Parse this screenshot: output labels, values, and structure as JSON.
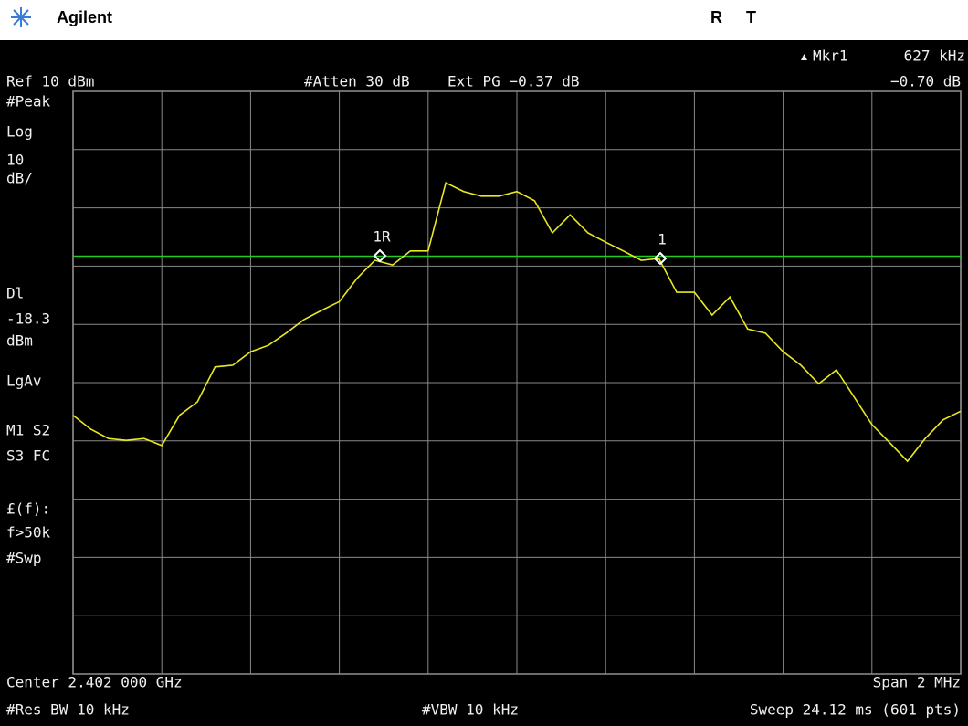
{
  "header": {
    "brand": "Agilent",
    "status": [
      "R",
      "T"
    ]
  },
  "readouts": {
    "marker": "Mkr1",
    "marker_delta": "627 kHz",
    "ref": "Ref 10 dBm",
    "atten": "#Atten 30 dB",
    "ext_pg": "Ext PG −0.37 dB",
    "marker_level": "−0.70 dB"
  },
  "side_top": [
    "#Peak",
    "Log",
    "10",
    "dB/",
    "Dl"
  ],
  "display_line": -18.3,
  "side_bottom": [
    "dBm",
    "LgAv",
    "M1  S2",
    "S3  FC",
    "£(f):",
    "f>50k",
    "#Swp"
  ],
  "markers": [
    "1R",
    "1"
  ],
  "footer": {
    "center": "Center 2.402 000 GHz",
    "span": "Span 2 MHz",
    "rbw": "#Res BW 10 kHz",
    "vbw": "#VBW 10 kHz",
    "sweep": "Sweep 24.12 ms (601 pts)"
  },
  "trace": {
    "type": "line",
    "color": "#e8e820",
    "display_line_color": "#22cc22",
    "ylim": [
      -90,
      10
    ],
    "yticks": [
      -90,
      -80,
      -70,
      -60,
      -50,
      -40,
      -30,
      -20,
      -10,
      0,
      10
    ],
    "values": [
      -45.6,
      -48.0,
      -49.6,
      -49.9,
      -49.6,
      -50.8,
      -45.6,
      -43.3,
      -37.3,
      -37.0,
      -34.7,
      -33.6,
      -31.5,
      -29.2,
      -27.6,
      -26.1,
      -22.1,
      -19.0,
      -19.8,
      -17.4,
      -17.4,
      -5.7,
      -7.2,
      -8.0,
      -8.0,
      -7.2,
      -8.8,
      -14.3,
      -11.2,
      -14.3,
      -15.9,
      -17.4,
      -19.0,
      -18.7,
      -24.5,
      -24.5,
      -28.4,
      -25.3,
      -30.8,
      -31.5,
      -34.7,
      -37.0,
      -40.2,
      -37.8,
      -42.5,
      -47.2,
      -50.3,
      -53.5,
      -49.6,
      -46.4,
      -44.9
    ]
  }
}
